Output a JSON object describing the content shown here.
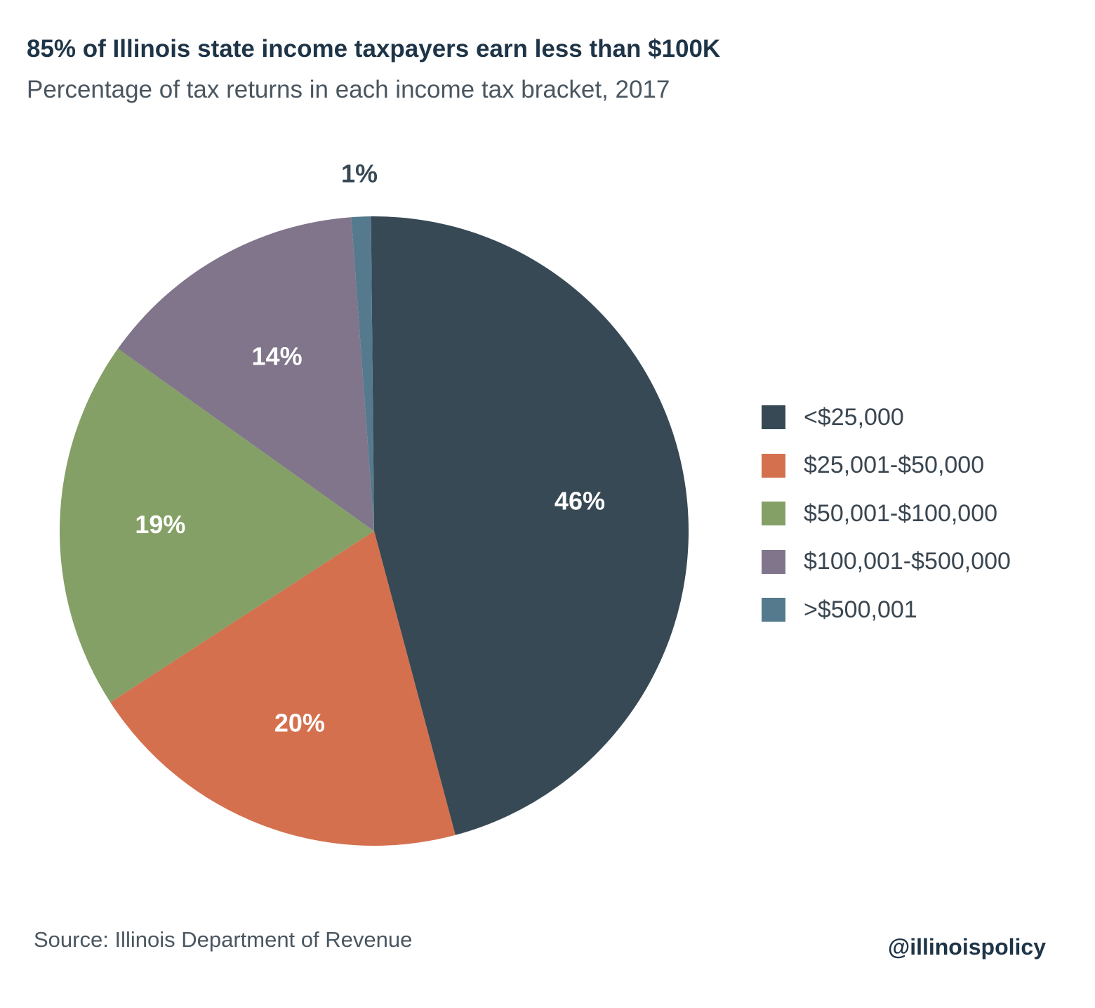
{
  "header": {
    "title": "85% of Illinois state income taxpayers earn less than $100K",
    "subtitle": "Percentage of tax returns in each income tax bracket, 2017"
  },
  "footer": {
    "source": "Source: Illinois Department of Revenue",
    "handle": "@illinoispolicy"
  },
  "chart_data": {
    "type": "pie",
    "title": "85% of Illinois state income taxpayers earn less than $100K",
    "subtitle": "Percentage of tax returns in each income tax bracket, 2017",
    "legend_position": "right",
    "slices": [
      {
        "label": "<$25,000",
        "value": 46,
        "display": "46%",
        "color": "#374955"
      },
      {
        "label": "$25,001-$50,000",
        "value": 20,
        "display": "20%",
        "color": "#d4704e"
      },
      {
        "label": "$50,001-$100,000",
        "value": 19,
        "display": "19%",
        "color": "#84a066"
      },
      {
        "label": "$100,001-$500,000",
        "value": 14,
        "display": "14%",
        "color": "#80758b"
      },
      {
        "label": ">$500,001",
        "value": 1,
        "display": "1%",
        "color": "#557a8d"
      }
    ]
  }
}
